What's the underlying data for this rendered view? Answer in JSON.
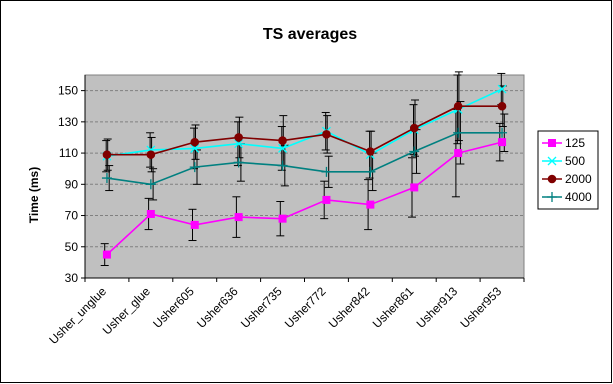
{
  "chart_data": {
    "type": "line",
    "title": "TS averages",
    "ylabel": "Time (ms)",
    "xlabel": "",
    "ylim": [
      30,
      160
    ],
    "yticks": [
      30,
      50,
      70,
      90,
      110,
      130,
      150
    ],
    "grid": true,
    "legend_position": "right",
    "plot_background": "#c0c0c0",
    "categories": [
      "Usher_unglue",
      "Usher_glue",
      "Usher605",
      "Usher636",
      "Usher735",
      "Usher772",
      "Usher842",
      "Usher861",
      "Usher913",
      "Usher953"
    ],
    "series": [
      {
        "name": "125",
        "color": "#ff00ff",
        "marker": "square",
        "values": [
          45,
          71,
          64,
          69,
          68,
          80,
          77,
          88,
          110,
          117
        ],
        "errors": [
          7,
          10,
          10,
          13,
          11,
          12,
          16,
          19,
          28,
          12
        ]
      },
      {
        "name": "500",
        "color": "#00ffff",
        "marker": "x",
        "values": [
          108,
          112,
          113,
          116,
          113,
          124,
          109,
          125,
          138,
          151
        ],
        "errors": [
          10,
          11,
          13,
          14,
          14,
          12,
          15,
          16,
          22,
          10
        ]
      },
      {
        "name": "2000",
        "color": "#800000",
        "marker": "circle",
        "values": [
          109,
          109,
          117,
          120,
          118,
          122,
          111,
          126,
          140,
          140
        ],
        "errors": [
          10,
          11,
          11,
          13,
          16,
          12,
          13,
          18,
          22,
          13
        ]
      },
      {
        "name": "4000",
        "color": "#008080",
        "marker": "plus",
        "values": [
          94,
          90,
          101,
          104,
          102,
          98,
          98,
          111,
          123,
          123
        ],
        "errors": [
          8,
          10,
          11,
          12,
          13,
          10,
          12,
          14,
          20,
          12
        ]
      }
    ]
  }
}
